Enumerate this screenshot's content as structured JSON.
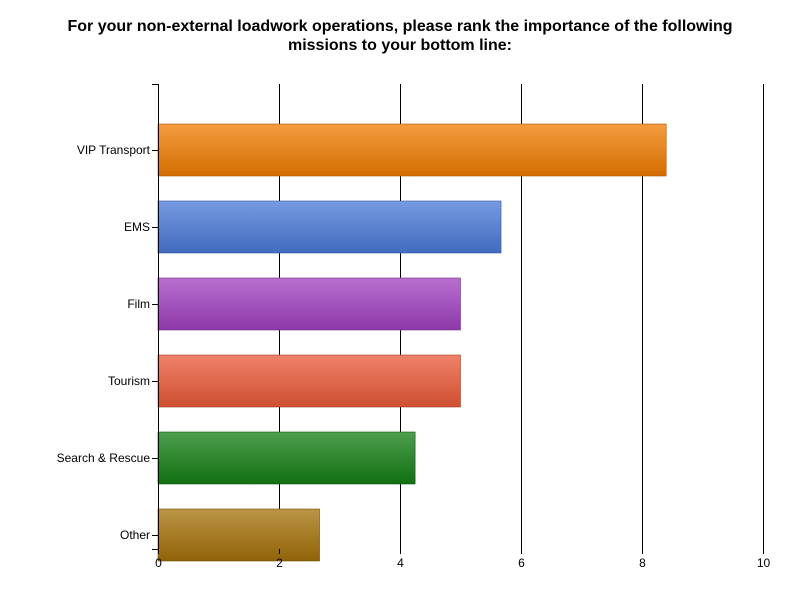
{
  "chart_data": {
    "type": "bar",
    "orientation": "horizontal",
    "title_lines": [
      "For your non-external loadwork operations, please rank the importance of the following",
      "missions to your bottom line:"
    ],
    "categories": [
      "VIP Transport",
      "EMS",
      "Film",
      "Tourism",
      "Search & Rescue",
      "Other"
    ],
    "values": [
      8.4,
      5.67,
      5.0,
      5.0,
      4.25,
      2.67
    ],
    "colors": [
      "#f07c00",
      "#4a7ad8",
      "#a040c0",
      "#ea5a38",
      "#137e13",
      "#a47008"
    ],
    "xlim": [
      0,
      10
    ],
    "xticks": [
      "0",
      "2",
      "4",
      "6",
      "8",
      "10"
    ],
    "xlabel": "",
    "ylabel": "",
    "grid": true,
    "legend": "none"
  }
}
